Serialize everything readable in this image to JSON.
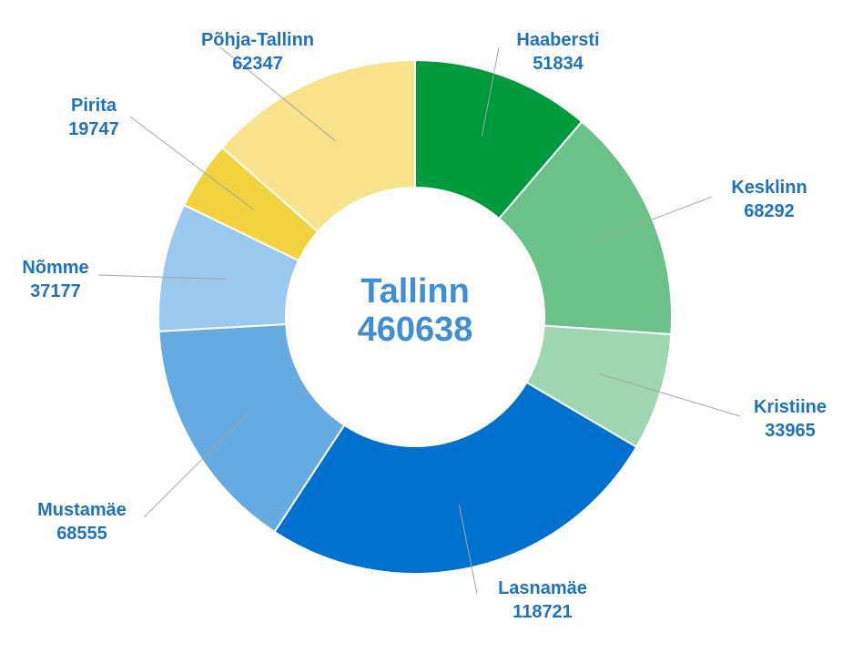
{
  "chart_data": {
    "type": "pie",
    "donut": true,
    "center": {
      "title": "Tallinn",
      "value": "460638"
    },
    "label_color": "#1e73be",
    "center_color": "#3f8fd2",
    "slices": [
      {
        "name": "Haabersti",
        "value": 51834,
        "color": "#009a3e"
      },
      {
        "name": "Kesklinn",
        "value": 68292,
        "color": "#6ac289"
      },
      {
        "name": "Kristiine",
        "value": 33965,
        "color": "#9dd6b0"
      },
      {
        "name": "Lasnamäe",
        "value": 118721,
        "color": "#0071ce"
      },
      {
        "name": "Mustamäe",
        "value": 68555,
        "color": "#66aae2"
      },
      {
        "name": "Nõmme",
        "value": 37177,
        "color": "#9bc8ee"
      },
      {
        "name": "Pirita",
        "value": 19747,
        "color": "#f2d33f"
      },
      {
        "name": "Põhja-Tallinn",
        "value": 62347,
        "color": "#f8e28c"
      }
    ]
  }
}
